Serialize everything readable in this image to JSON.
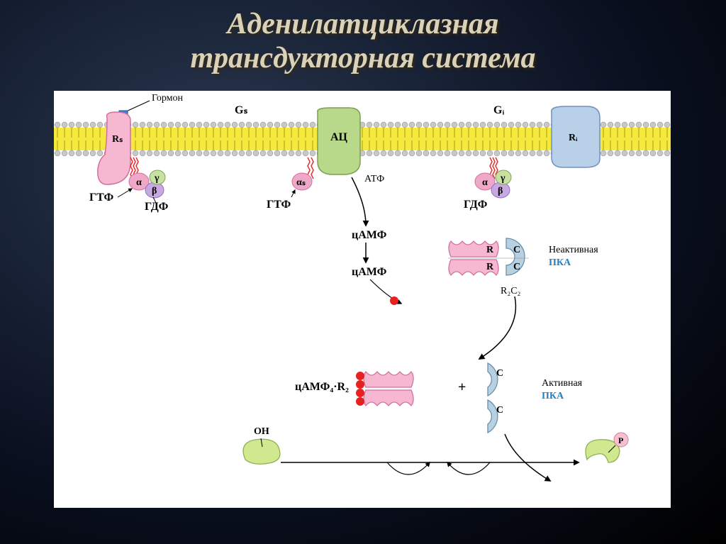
{
  "title": {
    "line1": "Аденилатциклазная",
    "line2": "трансдукторная система",
    "color": "#d9d2b8",
    "shadow": "#3a2a10",
    "fontsize": 42
  },
  "colors": {
    "background_slide": "#0f1a2e",
    "diagram_bg": "#ffffff",
    "membrane_head": "#c8c8c8",
    "membrane_tail": "#f5e93d",
    "receptor_pink": "#f5b8d0",
    "receptor_pink_edge": "#d070a0",
    "receptor_blue": "#b8d0e8",
    "receptor_blue_edge": "#7090c0",
    "ac_green": "#b8d88a",
    "ac_green_edge": "#7aa050",
    "alpha_pink": "#f0a8c8",
    "beta_purple": "#c8a8e0",
    "gamma_green": "#c8e0a0",
    "red_dot": "#e82020",
    "c_subunit": "#b8d0e0",
    "c_subunit_edge": "#6890b0",
    "r_subunit": "#f5b8d0",
    "enzyme_green": "#d0e890",
    "enzyme_green_edge": "#90b050",
    "p_circle": "#f5c0d0",
    "arrow": "#000000",
    "text": "#000000",
    "pka_label": "#2080c0"
  },
  "labels": {
    "hormone": "Гормон",
    "gs": "Gₛ",
    "gi": "Gᵢ",
    "rs": "Rₛ",
    "ri": "Rᵢ",
    "ac": "АЦ",
    "atf": "АТФ",
    "gtf": "ГТФ",
    "gdf": "ГДФ",
    "alpha": "α",
    "alpha_s": "αₛ",
    "beta": "β",
    "gamma": "γ",
    "camp": "цАМФ",
    "r": "R",
    "c": "C",
    "r2c2": "R₂C₂",
    "inactive_pka1": "Неактивная",
    "inactive_pka2": "ПКА",
    "active_pka1": "Активная",
    "active_pka2": "ПКА",
    "camp4r2": "цАМФ₄·R₂",
    "plus": "+",
    "oh": "OH",
    "p": "P"
  },
  "fontsize": {
    "label": 16,
    "small": 14,
    "tiny": 12
  }
}
